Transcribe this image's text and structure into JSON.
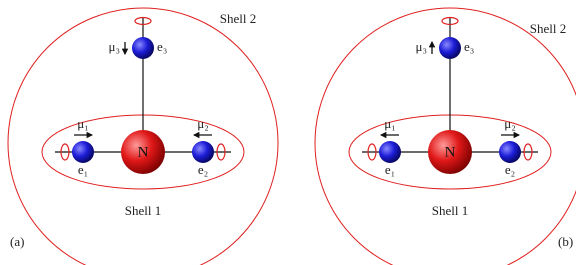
{
  "panels": [
    {
      "shell_outer": "Shell 2",
      "shell_inner": "Shell 1",
      "nucleus": "N",
      "electrons": [
        {
          "moment": "μ₁",
          "label": "e₁"
        },
        {
          "moment": "μ₂",
          "label": "e₂"
        },
        {
          "moment": "μ₃",
          "label": "e₃"
        }
      ],
      "panel_label": "(a)"
    },
    {
      "shell_outer": "Shell 2",
      "shell_inner": "Shell 1",
      "nucleus": "N",
      "electrons": [
        {
          "moment": "μ₁",
          "label": "e₁"
        },
        {
          "moment": "μ₂",
          "label": "e₂"
        },
        {
          "moment": "μ₃",
          "label": "e₃"
        }
      ],
      "panel_label": "(b)"
    }
  ]
}
